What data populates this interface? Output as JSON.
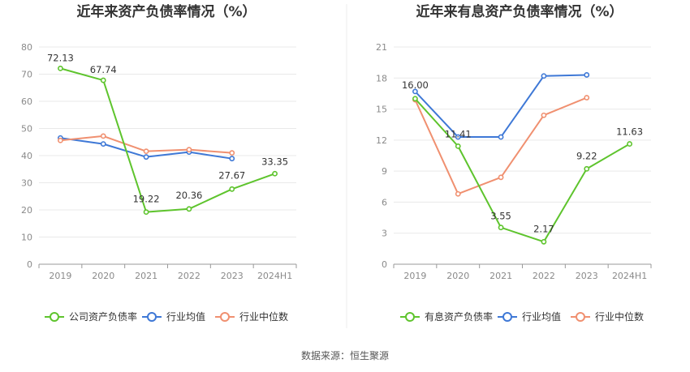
{
  "source_note": "数据来源：恒生聚源",
  "chart_data": [
    {
      "type": "line",
      "title": "近年来资产负债率情况（%）",
      "categories": [
        "2019",
        "2020",
        "2021",
        "2022",
        "2023",
        "2024H1"
      ],
      "ylim": [
        0,
        80
      ],
      "yticks": [
        0,
        10,
        20,
        30,
        40,
        50,
        60,
        70,
        80
      ],
      "grid": true,
      "legend_position": "bottom",
      "series": [
        {
          "name": "公司资产负债率",
          "color": "#5ec42d",
          "values": [
            72.13,
            67.74,
            19.22,
            20.36,
            27.67,
            33.35
          ],
          "labels": [
            "72.13",
            "67.74",
            "19.22",
            "20.36",
            "27.67",
            "33.35"
          ]
        },
        {
          "name": "行业均值",
          "color": "#3e78d6",
          "values": [
            46.5,
            44.3,
            39.5,
            41.3,
            38.9,
            null
          ]
        },
        {
          "name": "行业中位数",
          "color": "#f09070",
          "values": [
            45.6,
            47.2,
            41.6,
            42.2,
            41.0,
            null
          ]
        }
      ]
    },
    {
      "type": "line",
      "title": "近年来有息资产负债率情况（%）",
      "categories": [
        "2019",
        "2020",
        "2021",
        "2022",
        "2023",
        "2024H1"
      ],
      "ylim": [
        0,
        21
      ],
      "yticks": [
        0,
        3,
        6,
        9,
        12,
        15,
        18,
        21
      ],
      "grid": true,
      "legend_position": "bottom",
      "series": [
        {
          "name": "有息资产负债率",
          "color": "#5ec42d",
          "values": [
            16.0,
            11.41,
            3.55,
            2.17,
            9.22,
            11.63
          ],
          "labels": [
            "16.00",
            "11.41",
            "3.55",
            "2.17",
            "9.22",
            "11.63"
          ]
        },
        {
          "name": "行业均值",
          "color": "#3e78d6",
          "values": [
            16.7,
            12.3,
            12.3,
            18.2,
            18.3,
            null
          ]
        },
        {
          "name": "行业中位数",
          "color": "#f09070",
          "values": [
            15.9,
            6.8,
            8.4,
            14.4,
            16.1,
            null
          ]
        }
      ]
    }
  ]
}
